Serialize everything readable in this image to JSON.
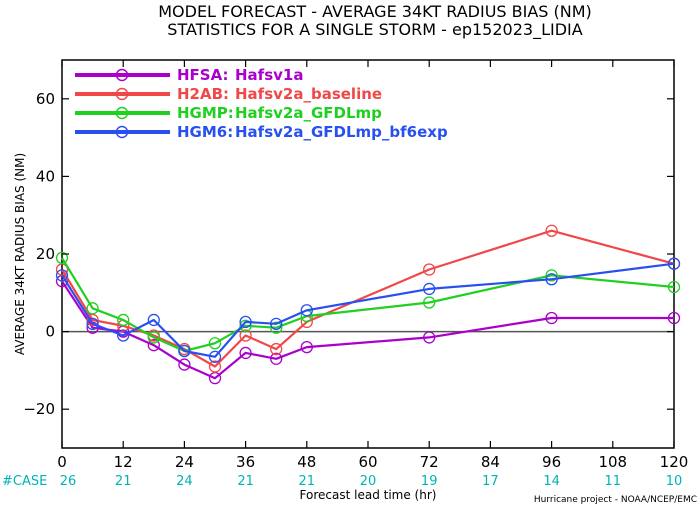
{
  "chart_data": {
    "type": "line",
    "title": "MODEL FORECAST - AVERAGE 34KT RADIUS BIAS (NM)",
    "subtitle": "STATISTICS FOR A SINGLE STORM - ep152023_LIDIA",
    "xlabel": "Forecast lead time (hr)",
    "ylabel": "AVERAGE 34KT RADIUS BIAS (NM)",
    "xlim": [
      0,
      120
    ],
    "ylim": [
      -30,
      70
    ],
    "x_ticks": [
      0,
      12,
      24,
      36,
      48,
      60,
      72,
      84,
      96,
      108,
      120
    ],
    "y_ticks": [
      -20,
      0,
      20,
      40,
      60
    ],
    "zero_line": true,
    "grid": false,
    "legend_position": "top-left",
    "series": [
      {
        "name": "HFSA: Hafsv1a",
        "label": "HFSA:",
        "desc": "Hafsv1a",
        "color": "#aa00cc",
        "x": [
          0,
          6,
          12,
          18,
          24,
          30,
          36,
          42,
          48,
          72,
          96,
          120
        ],
        "y": [
          13,
          1,
          0,
          -3.5,
          -8.5,
          -12,
          -5.5,
          -7,
          -4,
          -1.5,
          3.5,
          3.5
        ]
      },
      {
        "name": "H2AB: Hafsv2a_baseline",
        "label": "H2AB:",
        "desc": "Hafsv2a_baseline",
        "color": "#f04848",
        "x": [
          0,
          6,
          12,
          18,
          24,
          30,
          36,
          42,
          48,
          72,
          96,
          120
        ],
        "y": [
          16,
          3,
          1.5,
          -1,
          -4.5,
          -9,
          -1,
          -4.5,
          2.5,
          16,
          26,
          17.5
        ]
      },
      {
        "name": "HGMP: Hafsv2a_GFDLmp",
        "label": "HGMP:",
        "desc": "Hafsv2a_GFDLmp",
        "color": "#20d020",
        "x": [
          0,
          6,
          12,
          18,
          24,
          30,
          36,
          42,
          48,
          72,
          96,
          120
        ],
        "y": [
          19,
          6,
          3,
          -1.5,
          -5,
          -3,
          1.5,
          1,
          4,
          7.5,
          14.5,
          11.5
        ]
      },
      {
        "name": "HGM6: Hafsv2a_GFDLmp_bf6exp",
        "label": "HGM6:",
        "desc": "Hafsv2a_GFDLmp_bf6exp",
        "color": "#2850f0",
        "x": [
          0,
          6,
          12,
          18,
          24,
          30,
          36,
          42,
          48,
          72,
          96,
          120
        ],
        "y": [
          14.5,
          2,
          -1,
          3,
          -5,
          -6.5,
          2.5,
          2,
          5.5,
          11,
          13.5,
          17.5
        ]
      }
    ],
    "cases": {
      "label": "#CASE",
      "x": [
        0,
        12,
        24,
        36,
        48,
        60,
        72,
        84,
        96,
        108,
        120
      ],
      "counts": [
        "26",
        "21",
        "24",
        "21",
        "21",
        "20",
        "19",
        "17",
        "14",
        "11",
        "10"
      ]
    },
    "credit": "Hurricane project - NOAA/NCEP/EMC"
  }
}
